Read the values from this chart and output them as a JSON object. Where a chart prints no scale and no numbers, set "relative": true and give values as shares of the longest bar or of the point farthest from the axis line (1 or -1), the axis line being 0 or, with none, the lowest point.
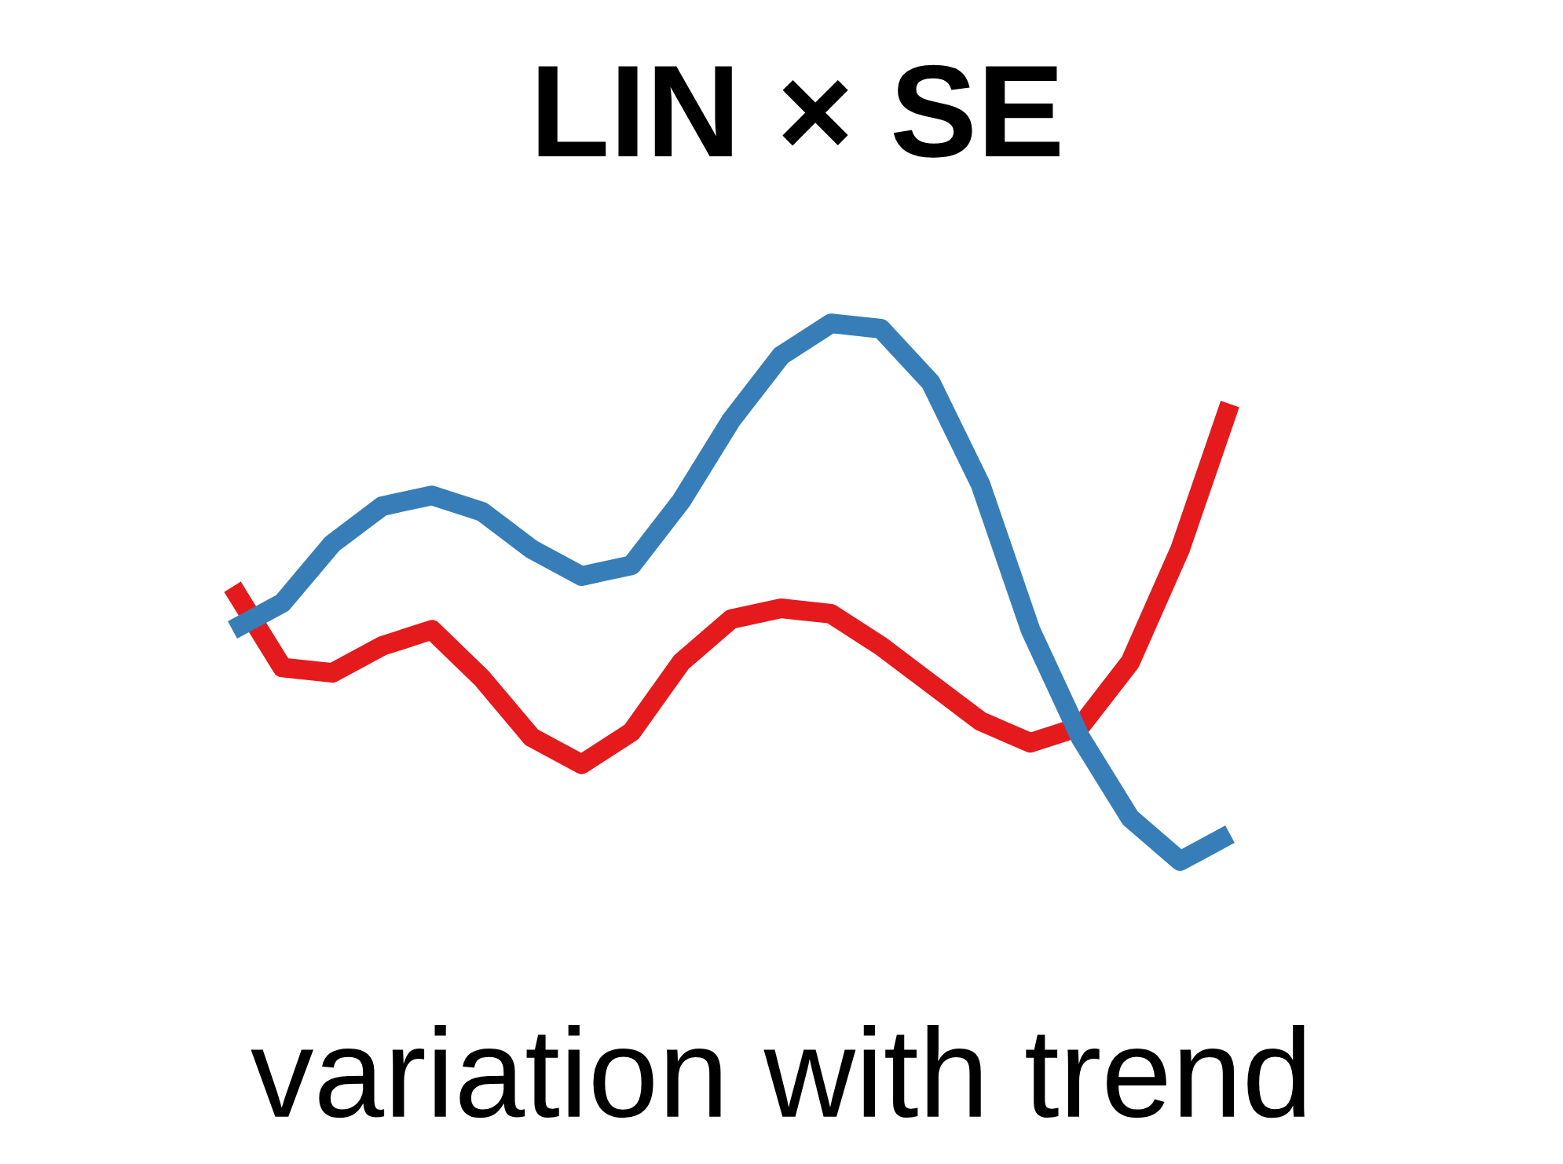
{
  "chart_data": {
    "type": "line",
    "title": "LIN × SE",
    "annotations": [
      "variation with trend"
    ],
    "relative": true,
    "categories": [
      null,
      null,
      null,
      null,
      null,
      null,
      null,
      null,
      null,
      null,
      null,
      null,
      null,
      null,
      null,
      null,
      null,
      null,
      null,
      null,
      null
    ],
    "series": [
      {
        "color": "#e41a1c",
        "values": [
          0.51,
          0.36,
          0.35,
          0.4,
          0.43,
          0.34,
          0.23,
          0.18,
          0.24,
          0.37,
          0.45,
          0.47,
          0.46,
          0.4,
          0.33,
          0.26,
          0.22,
          0.25,
          0.37,
          0.58,
          0.85
        ]
      },
      {
        "color": "#377eb8",
        "values": [
          0.43,
          0.48,
          0.59,
          0.66,
          0.68,
          0.65,
          0.58,
          0.53,
          0.55,
          0.67,
          0.82,
          0.94,
          1,
          0.99,
          0.89,
          0.7,
          0.43,
          0.23,
          0.08,
          0,
          0.05
        ]
      }
    ]
  }
}
